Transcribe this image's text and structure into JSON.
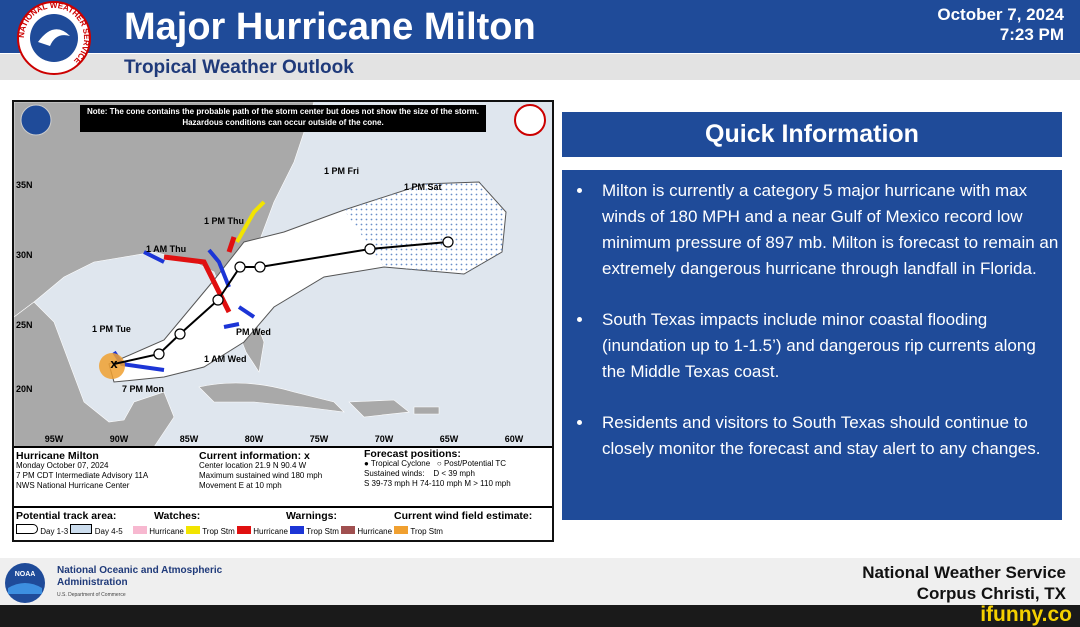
{
  "header": {
    "title": "Major Hurricane Milton",
    "subtitle": "Tropical Weather Outlook",
    "date": "October 7, 2024",
    "time": "7:23 PM",
    "logo_text": "NATIONAL WEATHER SERVICE"
  },
  "map": {
    "note": "Note: The cone contains the probable path of the storm center but does not show the size of the storm. Hazardous conditions can occur outside of the cone.",
    "track_labels": [
      "1 PM Sat",
      "1 PM Fri",
      "1 PM Thu",
      "1 AM Thu",
      "1 PM Tue",
      "PM Wed",
      "1 AM Wed",
      "7 PM Mon"
    ],
    "latitudes": [
      "35N",
      "30N",
      "25N",
      "20N"
    ],
    "longitudes": [
      "95W",
      "90W",
      "85W",
      "80W",
      "75W",
      "70W",
      "65W",
      "60W"
    ],
    "legend": {
      "storm": [
        "Hurricane Milton",
        "Monday October 07, 2024",
        "7 PM CDT Intermediate Advisory 11A",
        "NWS National Hurricane Center"
      ],
      "current": [
        "Current information: x",
        "Center location 21.9 N 90.4 W",
        "Maximum sustained wind 180 mph",
        "Movement E at 10 mph"
      ],
      "forecast": [
        "Forecast positions:",
        "Tropical Cyclone",
        "Post/Potential TC",
        "Sustained winds:",
        "D < 39 mph",
        "S 39-73 mph  H 74-110 mph  M > 110 mph"
      ],
      "track_area": [
        "Potential track area:",
        "Day 1-3",
        "Day 4-5"
      ],
      "watches": [
        "Watches:",
        "Hurricane",
        "Trop Stm"
      ],
      "warnings": [
        "Warnings:",
        "Hurricane",
        "Trop Stm"
      ],
      "wind_field": [
        "Current wind field estimate:",
        "Hurricane",
        "Trop Stm"
      ]
    }
  },
  "quick_info": {
    "title": "Quick Information",
    "bullets": [
      "Milton is currently a category 5 major hurricane with max winds of 180 MPH and a near Gulf of Mexico record low minimum pressure of 897 mb. Milton is forecast to remain an extremely dangerous hurricane through landfall in Florida.",
      "South Texas impacts include minor coastal flooding (inundation up to 1-1.5’) and dangerous rip currents along the Middle Texas coast.",
      "Residents and visitors to South Texas should continue to closely monitor the forecast and stay alert to any changes."
    ]
  },
  "footer": {
    "noaa_logo": "NOAA",
    "agency": "National Oceanic and Atmospheric Administration",
    "department": "U.S. Department of Commerce",
    "office": "National Weather Service",
    "location": "Corpus Christi, TX",
    "watermark": "ifunny.co"
  }
}
